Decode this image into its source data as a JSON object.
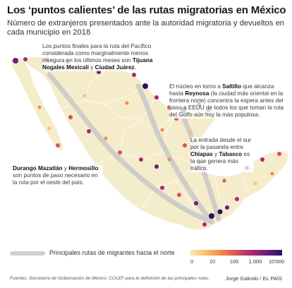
{
  "title": "Los ‘puntos calientes’ de las rutas migratorias en México",
  "subtitle": "Número de extranjeros presentados ante la autoridad migratoria y devueltos en cada municipio en 2018",
  "annotations": {
    "north": {
      "text": "Los puntos finales para la ruta del Pacífico considerada como marginalmente menos insegura en los últimos meses son",
      "city1": "Tijuana",
      "city2": "Nogales",
      "city3": "Mexicali",
      "joiner": "y",
      "city4": "Ciudad Juárez",
      "end": "."
    },
    "east": {
      "pre": "El núcleo en torno a",
      "city1": "Saltillo",
      "mid": "que alcanza hasta",
      "city2": "Reynosa",
      "rest": "(la ciudad más oriental en la frontera norte) concentra la espera antes del paso a EEUU de todos los que toman la ruta del Golfo aún hoy la más populosa."
    },
    "south": {
      "pre": "La entrada desde el sur por la pasarela entre",
      "city1": "Chiapas",
      "joiner": "y",
      "city2": "Tabasco",
      "rest": "es la que genera más tráfico."
    },
    "west": {
      "city1": "Durango",
      "city2": "Mazatlán",
      "joiner": "y",
      "city3": "Hermosillo",
      "rest": "son puntos de paso necesario en la ruta por el oeste del país."
    }
  },
  "legend": {
    "routes_label": "Principales rutas de migrantes hacia el norte",
    "scale_ticks": [
      "0",
      "10",
      "100",
      "1.000",
      "10'000"
    ],
    "colors": [
      "#fde9a9",
      "#fcc06a",
      "#f2894f",
      "#d9505b",
      "#a9296f",
      "#6b1d79",
      "#2c1160"
    ]
  },
  "map": {
    "land_color": "#f5eccb",
    "border_color": "#ffffff",
    "route_color": "#c8c8c8"
  },
  "footer": {
    "source": "Fuentes: Secretaría de Gobernación de México; COLEF para la definición de las principales rutas.",
    "credit": "Jorge Galindo / EL PAÍS"
  }
}
